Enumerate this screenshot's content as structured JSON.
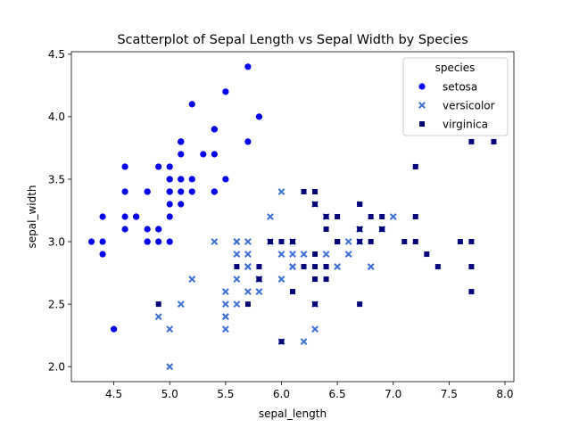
{
  "chart_data": {
    "type": "scatter",
    "title": "Scatterplot of Sepal Length vs Sepal Width by Species",
    "xlabel": "sepal_length",
    "ylabel": "sepal_width",
    "xlim": [
      4.12,
      8.08
    ],
    "ylim": [
      1.88,
      4.52
    ],
    "xticks": [
      4.5,
      5.0,
      5.5,
      6.0,
      6.5,
      7.0,
      7.5,
      8.0
    ],
    "xtick_labels": [
      "4.5",
      "5.0",
      "5.5",
      "6.0",
      "6.5",
      "7.0",
      "7.5",
      "8.0"
    ],
    "yticks": [
      2.0,
      2.5,
      3.0,
      3.5,
      4.0,
      4.5
    ],
    "ytick_labels": [
      "2.0",
      "2.5",
      "3.0",
      "3.5",
      "4.0",
      "4.5"
    ],
    "grid": false,
    "legend": {
      "title": "species",
      "placement": "top-right"
    },
    "series": [
      {
        "name": "setosa",
        "marker": "circle",
        "color": "#0000ee",
        "points": [
          [
            5.1,
            3.5
          ],
          [
            4.9,
            3.0
          ],
          [
            4.7,
            3.2
          ],
          [
            4.6,
            3.1
          ],
          [
            5.0,
            3.6
          ],
          [
            5.4,
            3.9
          ],
          [
            4.6,
            3.4
          ],
          [
            5.0,
            3.4
          ],
          [
            4.4,
            2.9
          ],
          [
            4.9,
            3.1
          ],
          [
            5.4,
            3.7
          ],
          [
            4.8,
            3.4
          ],
          [
            4.8,
            3.0
          ],
          [
            4.3,
            3.0
          ],
          [
            5.8,
            4.0
          ],
          [
            5.7,
            4.4
          ],
          [
            5.4,
            3.9
          ],
          [
            5.1,
            3.5
          ],
          [
            5.7,
            3.8
          ],
          [
            5.1,
            3.8
          ],
          [
            5.4,
            3.4
          ],
          [
            5.1,
            3.7
          ],
          [
            4.6,
            3.6
          ],
          [
            5.1,
            3.3
          ],
          [
            4.8,
            3.4
          ],
          [
            5.0,
            3.0
          ],
          [
            5.0,
            3.4
          ],
          [
            5.2,
            3.5
          ],
          [
            5.2,
            3.4
          ],
          [
            4.7,
            3.2
          ],
          [
            4.8,
            3.1
          ],
          [
            5.4,
            3.4
          ],
          [
            5.2,
            4.1
          ],
          [
            5.5,
            4.2
          ],
          [
            4.9,
            3.1
          ],
          [
            5.0,
            3.2
          ],
          [
            5.5,
            3.5
          ],
          [
            4.9,
            3.6
          ],
          [
            4.4,
            3.0
          ],
          [
            5.1,
            3.4
          ],
          [
            5.0,
            3.5
          ],
          [
            4.5,
            2.3
          ],
          [
            4.4,
            3.2
          ],
          [
            5.0,
            3.5
          ],
          [
            5.1,
            3.8
          ],
          [
            4.8,
            3.0
          ],
          [
            5.1,
            3.8
          ],
          [
            4.6,
            3.2
          ],
          [
            5.3,
            3.7
          ],
          [
            5.0,
            3.3
          ]
        ]
      },
      {
        "name": "versicolor",
        "marker": "x",
        "color": "#3a6fd8",
        "points": [
          [
            7.0,
            3.2
          ],
          [
            6.4,
            3.2
          ],
          [
            6.9,
            3.1
          ],
          [
            5.5,
            2.3
          ],
          [
            6.5,
            2.8
          ],
          [
            5.7,
            2.8
          ],
          [
            6.3,
            3.3
          ],
          [
            4.9,
            2.4
          ],
          [
            6.6,
            2.9
          ],
          [
            5.2,
            2.7
          ],
          [
            5.0,
            2.0
          ],
          [
            5.9,
            3.0
          ],
          [
            6.0,
            2.2
          ],
          [
            6.1,
            2.9
          ],
          [
            5.6,
            2.9
          ],
          [
            6.7,
            3.1
          ],
          [
            5.6,
            3.0
          ],
          [
            5.8,
            2.7
          ],
          [
            6.2,
            2.2
          ],
          [
            5.6,
            2.5
          ],
          [
            5.9,
            3.2
          ],
          [
            6.1,
            2.8
          ],
          [
            6.3,
            2.5
          ],
          [
            6.1,
            2.8
          ],
          [
            6.4,
            2.9
          ],
          [
            6.6,
            3.0
          ],
          [
            6.8,
            2.8
          ],
          [
            6.7,
            3.0
          ],
          [
            6.0,
            2.9
          ],
          [
            5.7,
            2.6
          ],
          [
            5.5,
            2.4
          ],
          [
            5.5,
            2.4
          ],
          [
            5.8,
            2.7
          ],
          [
            6.0,
            2.7
          ],
          [
            5.4,
            3.0
          ],
          [
            6.0,
            3.4
          ],
          [
            6.7,
            3.1
          ],
          [
            6.3,
            2.3
          ],
          [
            5.6,
            3.0
          ],
          [
            5.5,
            2.5
          ],
          [
            5.5,
            2.6
          ],
          [
            6.1,
            3.0
          ],
          [
            5.8,
            2.6
          ],
          [
            5.0,
            2.3
          ],
          [
            5.6,
            2.7
          ],
          [
            5.7,
            3.0
          ],
          [
            5.7,
            2.9
          ],
          [
            6.2,
            2.9
          ],
          [
            5.1,
            2.5
          ],
          [
            5.7,
            2.8
          ]
        ]
      },
      {
        "name": "virginica",
        "marker": "square",
        "color": "#00007a",
        "points": [
          [
            6.3,
            3.3
          ],
          [
            5.8,
            2.7
          ],
          [
            7.1,
            3.0
          ],
          [
            6.3,
            2.9
          ],
          [
            6.5,
            3.0
          ],
          [
            7.6,
            3.0
          ],
          [
            4.9,
            2.5
          ],
          [
            7.3,
            2.9
          ],
          [
            6.7,
            2.5
          ],
          [
            7.2,
            3.6
          ],
          [
            6.5,
            3.2
          ],
          [
            6.4,
            2.7
          ],
          [
            6.8,
            3.0
          ],
          [
            5.7,
            2.5
          ],
          [
            5.8,
            2.8
          ],
          [
            6.4,
            3.2
          ],
          [
            6.5,
            3.0
          ],
          [
            7.7,
            3.8
          ],
          [
            7.7,
            2.6
          ],
          [
            6.0,
            2.2
          ],
          [
            6.9,
            3.2
          ],
          [
            5.6,
            2.8
          ],
          [
            7.7,
            2.8
          ],
          [
            6.3,
            2.7
          ],
          [
            6.7,
            3.3
          ],
          [
            7.2,
            3.2
          ],
          [
            6.2,
            2.8
          ],
          [
            6.1,
            3.0
          ],
          [
            6.4,
            2.8
          ],
          [
            7.2,
            3.0
          ],
          [
            7.4,
            2.8
          ],
          [
            7.9,
            3.8
          ],
          [
            6.4,
            2.8
          ],
          [
            6.3,
            2.8
          ],
          [
            6.1,
            2.6
          ],
          [
            7.7,
            3.0
          ],
          [
            6.3,
            3.4
          ],
          [
            6.4,
            3.1
          ],
          [
            6.0,
            3.0
          ],
          [
            6.9,
            3.1
          ],
          [
            6.7,
            3.1
          ],
          [
            6.9,
            3.1
          ],
          [
            5.8,
            2.7
          ],
          [
            6.8,
            3.2
          ],
          [
            6.7,
            3.3
          ],
          [
            6.7,
            3.0
          ],
          [
            6.3,
            2.5
          ],
          [
            6.5,
            3.0
          ],
          [
            6.2,
            3.4
          ],
          [
            5.9,
            3.0
          ]
        ]
      }
    ]
  }
}
